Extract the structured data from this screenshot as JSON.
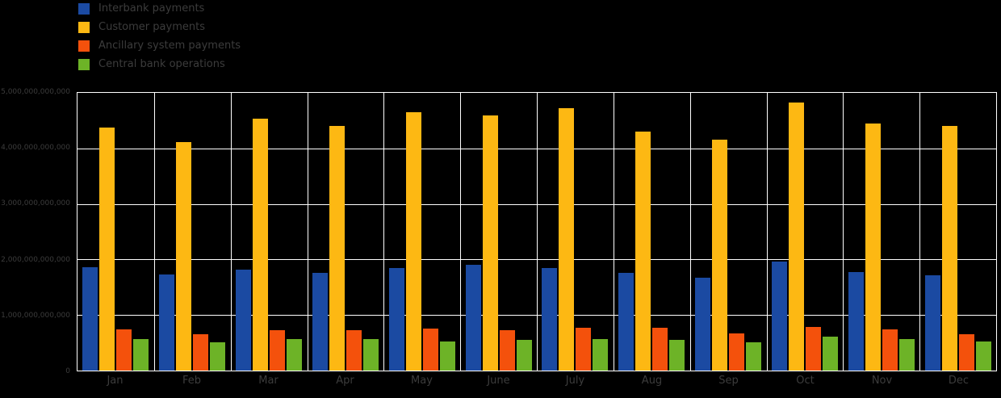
{
  "chart_data": {
    "type": "bar",
    "title": "",
    "xlabel": "",
    "ylabel": "",
    "grid": true,
    "legend_position": "top-left",
    "background_color": "#000000",
    "gridline_color": "#ffffff",
    "text_color": "#3c3c3c",
    "ylim": [
      0,
      5000000000000
    ],
    "ytick_interval": 1000000000000,
    "ytick_labels": [
      "0",
      "1,000,000,000,000",
      "2,000,000,000,000",
      "3,000,000,000,000",
      "4,000,000,000,000",
      "5,000,000,000,000"
    ],
    "categories": [
      "Jan",
      "Feb",
      "Mar",
      "Apr",
      "May",
      "June",
      "July",
      "Aug",
      "Sep",
      "Oct",
      "Nov",
      "Dec"
    ],
    "series": [
      {
        "name": "Interbank payments",
        "color": "#1b4aa2",
        "values": [
          1860000000000,
          1730000000000,
          1820000000000,
          1760000000000,
          1850000000000,
          1910000000000,
          1840000000000,
          1760000000000,
          1670000000000,
          1960000000000,
          1780000000000,
          1720000000000
        ]
      },
      {
        "name": "Customer payments",
        "color": "#fdb813",
        "values": [
          4380000000000,
          4120000000000,
          4530000000000,
          4400000000000,
          4650000000000,
          4600000000000,
          4730000000000,
          4300000000000,
          4150000000000,
          4820000000000,
          4450000000000,
          4400000000000
        ]
      },
      {
        "name": "Ancillary system payments",
        "color": "#f4510c",
        "values": [
          740000000000,
          650000000000,
          720000000000,
          720000000000,
          750000000000,
          720000000000,
          770000000000,
          770000000000,
          670000000000,
          780000000000,
          740000000000,
          660000000000
        ]
      },
      {
        "name": "Central bank operations",
        "color": "#6db327",
        "values": [
          570000000000,
          510000000000,
          560000000000,
          560000000000,
          530000000000,
          550000000000,
          570000000000,
          550000000000,
          510000000000,
          610000000000,
          570000000000,
          530000000000
        ]
      }
    ]
  }
}
